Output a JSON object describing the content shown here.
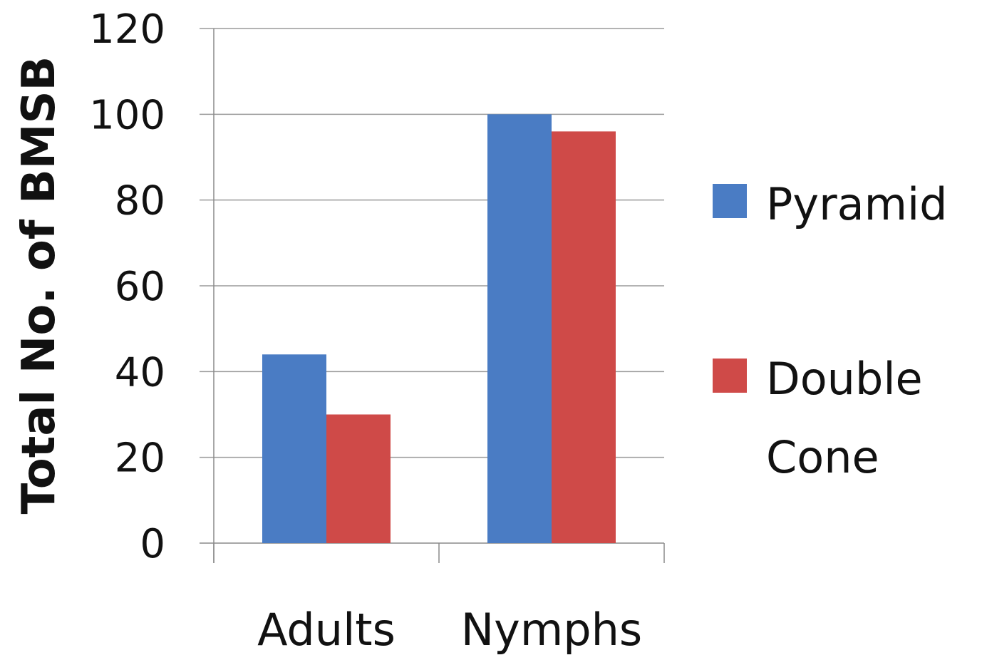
{
  "chart_data": {
    "type": "bar",
    "title": "",
    "xlabel": "",
    "ylabel": "Total No. of BMSB",
    "categories": [
      "Adults",
      "Nymphs"
    ],
    "series": [
      {
        "name": "Pyramid",
        "values": [
          44,
          100
        ],
        "color": "#4a7cc4"
      },
      {
        "name": "Double Cone",
        "values": [
          30,
          96
        ],
        "color": "#cf4a48"
      }
    ],
    "ylim": [
      0,
      120
    ],
    "yticks": [
      0,
      20,
      40,
      60,
      80,
      100,
      120
    ],
    "grid": true,
    "legend_position": "right"
  },
  "legend": {
    "items": [
      {
        "lines": [
          "Pyramid"
        ]
      },
      {
        "lines": [
          "Double",
          "Cone"
        ]
      }
    ]
  }
}
